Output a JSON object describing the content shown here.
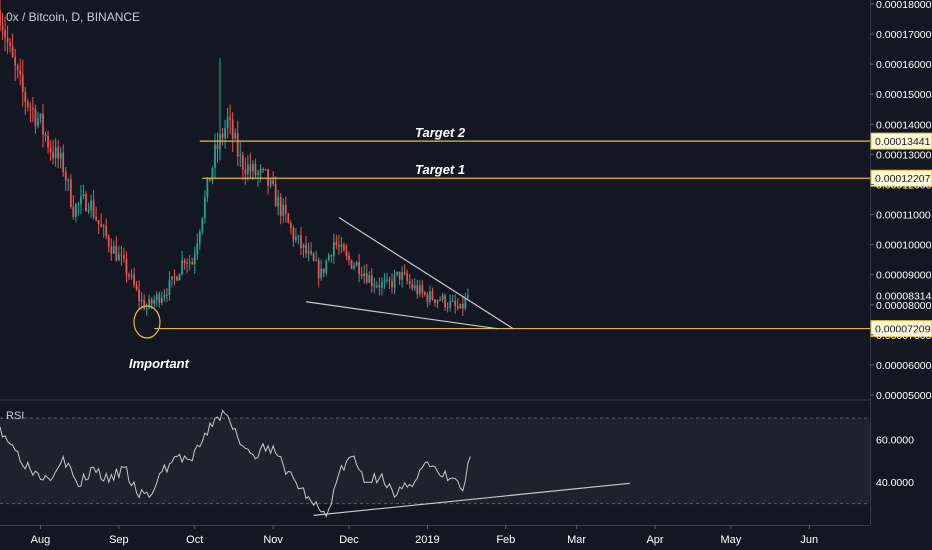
{
  "header": {
    "symbol_label": "0x / Bitcoin, D, BINANCE"
  },
  "rsi_pane": {
    "label": "RSI"
  },
  "annotations": {
    "target2": "Target 2",
    "target1": "Target 1",
    "important": "Important"
  },
  "colors": {
    "background": "#131722",
    "up": "#26a69a",
    "down": "#ef5350",
    "level_line": "#e5b83f",
    "trendline": "#c8c8c8",
    "rsi_line": "#c8c8c8",
    "text": "#c9ccd6",
    "axis_text": "#ffffff"
  },
  "chart_data": [
    {
      "type": "candlestick",
      "title": "0x / Bitcoin, D, BINANCE",
      "ylim": [
        5e-05,
        0.00018
      ],
      "y_ticks": [
        "0.00005000",
        "0.00006000",
        "0.00007000",
        "0.00008000",
        "0.00009000",
        "0.00010000",
        "0.00011000",
        "0.00012000",
        "0.00013000",
        "0.00014000",
        "0.00015000",
        "0.00016000",
        "0.00017000",
        "0.00018000"
      ],
      "x_ticks": [
        "Aug",
        "Sep",
        "Oct",
        "Nov",
        "Dec",
        "2019",
        "Feb",
        "Mar",
        "Apr",
        "May",
        "Jun"
      ],
      "x_tick_dates": [
        "2018-08-01",
        "2018-09-01",
        "2018-10-01",
        "2018-11-01",
        "2018-12-01",
        "2019-01-01",
        "2019-02-01",
        "2019-03-01",
        "2019-04-01",
        "2019-05-01",
        "2019-06-01"
      ],
      "x_range": [
        "2018-07-16",
        "2019-06-25"
      ],
      "price_path": [
        [
          "2018-07-16",
          0.000178
        ],
        [
          "2018-07-20",
          0.000163
        ],
        [
          "2018-07-25",
          0.00015
        ],
        [
          "2018-07-31",
          0.000142
        ],
        [
          "2018-08-05",
          0.000132
        ],
        [
          "2018-08-10",
          0.000126
        ],
        [
          "2018-08-14",
          0.000112
        ],
        [
          "2018-08-20",
          0.000115
        ],
        [
          "2018-08-25",
          0.000105
        ],
        [
          "2018-08-31",
          9.7e-05
        ],
        [
          "2018-09-05",
          9e-05
        ],
        [
          "2018-09-09",
          8.2e-05
        ],
        [
          "2018-09-12",
          7.9e-05
        ],
        [
          "2018-09-17",
          8.3e-05
        ],
        [
          "2018-09-22",
          8.7e-05
        ],
        [
          "2018-09-27",
          9.6e-05
        ],
        [
          "2018-09-30",
          9.4e-05
        ],
        [
          "2018-10-04",
          0.000111
        ],
        [
          "2018-10-09",
          0.00013
        ],
        [
          "2018-10-14",
          0.000141
        ],
        [
          "2018-10-19",
          0.000128
        ],
        [
          "2018-10-24",
          0.000124
        ],
        [
          "2018-10-29",
          0.000122
        ],
        [
          "2018-11-04",
          0.000112
        ],
        [
          "2018-11-09",
          0.000103
        ],
        [
          "2018-11-14",
          9.7e-05
        ],
        [
          "2018-11-20",
          9e-05
        ],
        [
          "2018-11-25",
          0.000101
        ],
        [
          "2018-11-30",
          9.5e-05
        ],
        [
          "2018-12-05",
          9.3e-05
        ],
        [
          "2018-12-10",
          8.8e-05
        ],
        [
          "2018-12-16",
          8.6e-05
        ],
        [
          "2018-12-21",
          9e-05
        ],
        [
          "2018-12-26",
          8.6e-05
        ],
        [
          "2018-12-31",
          8.3e-05
        ],
        [
          "2019-01-06",
          8.2e-05
        ],
        [
          "2019-01-10",
          8e-05
        ],
        [
          "2019-01-14",
          7.8e-05
        ],
        [
          "2019-01-17",
          8.3e-05
        ]
      ],
      "levels": [
        {
          "label": "Target 2",
          "value": 0.00013441,
          "price_label": "0.00013441"
        },
        {
          "label": "Target 1",
          "value": 0.00012207,
          "price_label": "0.00012207"
        },
        {
          "label": "",
          "value": 7.209e-05,
          "price_label": "0.00007209"
        }
      ],
      "current_price_label": "0.00008314",
      "current_price": 8.314e-05,
      "falling_wedge": {
        "upper": [
          [
            "2018-11-27",
            0.000109
          ],
          [
            "2019-02-04",
            7.2e-05
          ]
        ],
        "lower": [
          [
            "2018-11-14",
            8.1e-05
          ],
          [
            "2019-01-29",
            7.2e-05
          ]
        ]
      }
    },
    {
      "type": "line",
      "title": "RSI",
      "ylim": [
        20,
        78
      ],
      "y_ticks": [
        "40.0000",
        "60.0000"
      ],
      "y_tick_values": [
        40,
        60
      ],
      "bands": [
        30,
        70
      ],
      "series": [
        {
          "name": "RSI",
          "x": [
            "2018-07-16",
            "2018-07-22",
            "2018-07-28",
            "2018-08-04",
            "2018-08-10",
            "2018-08-16",
            "2018-08-22",
            "2018-08-28",
            "2018-09-03",
            "2018-09-08",
            "2018-09-13",
            "2018-09-18",
            "2018-09-24",
            "2018-09-30",
            "2018-10-04",
            "2018-10-09",
            "2018-10-13",
            "2018-10-18",
            "2018-10-24",
            "2018-10-30",
            "2018-11-05",
            "2018-11-10",
            "2018-11-16",
            "2018-11-22",
            "2018-11-27",
            "2018-12-02",
            "2018-12-08",
            "2018-12-14",
            "2018-12-19",
            "2018-12-25",
            "2018-12-31",
            "2019-01-06",
            "2019-01-11",
            "2019-01-15",
            "2019-01-18"
          ],
          "values": [
            66,
            55,
            46,
            42,
            52,
            38,
            47,
            40,
            47,
            35,
            33,
            45,
            52,
            50,
            59,
            70,
            72,
            61,
            53,
            57,
            48,
            40,
            31,
            24,
            44,
            52,
            40,
            44,
            33,
            39,
            49,
            43,
            42,
            36,
            52
          ]
        }
      ],
      "trendline": [
        [
          "2018-11-17",
          24.5
        ],
        [
          "2019-03-22",
          39.5
        ]
      ]
    }
  ]
}
